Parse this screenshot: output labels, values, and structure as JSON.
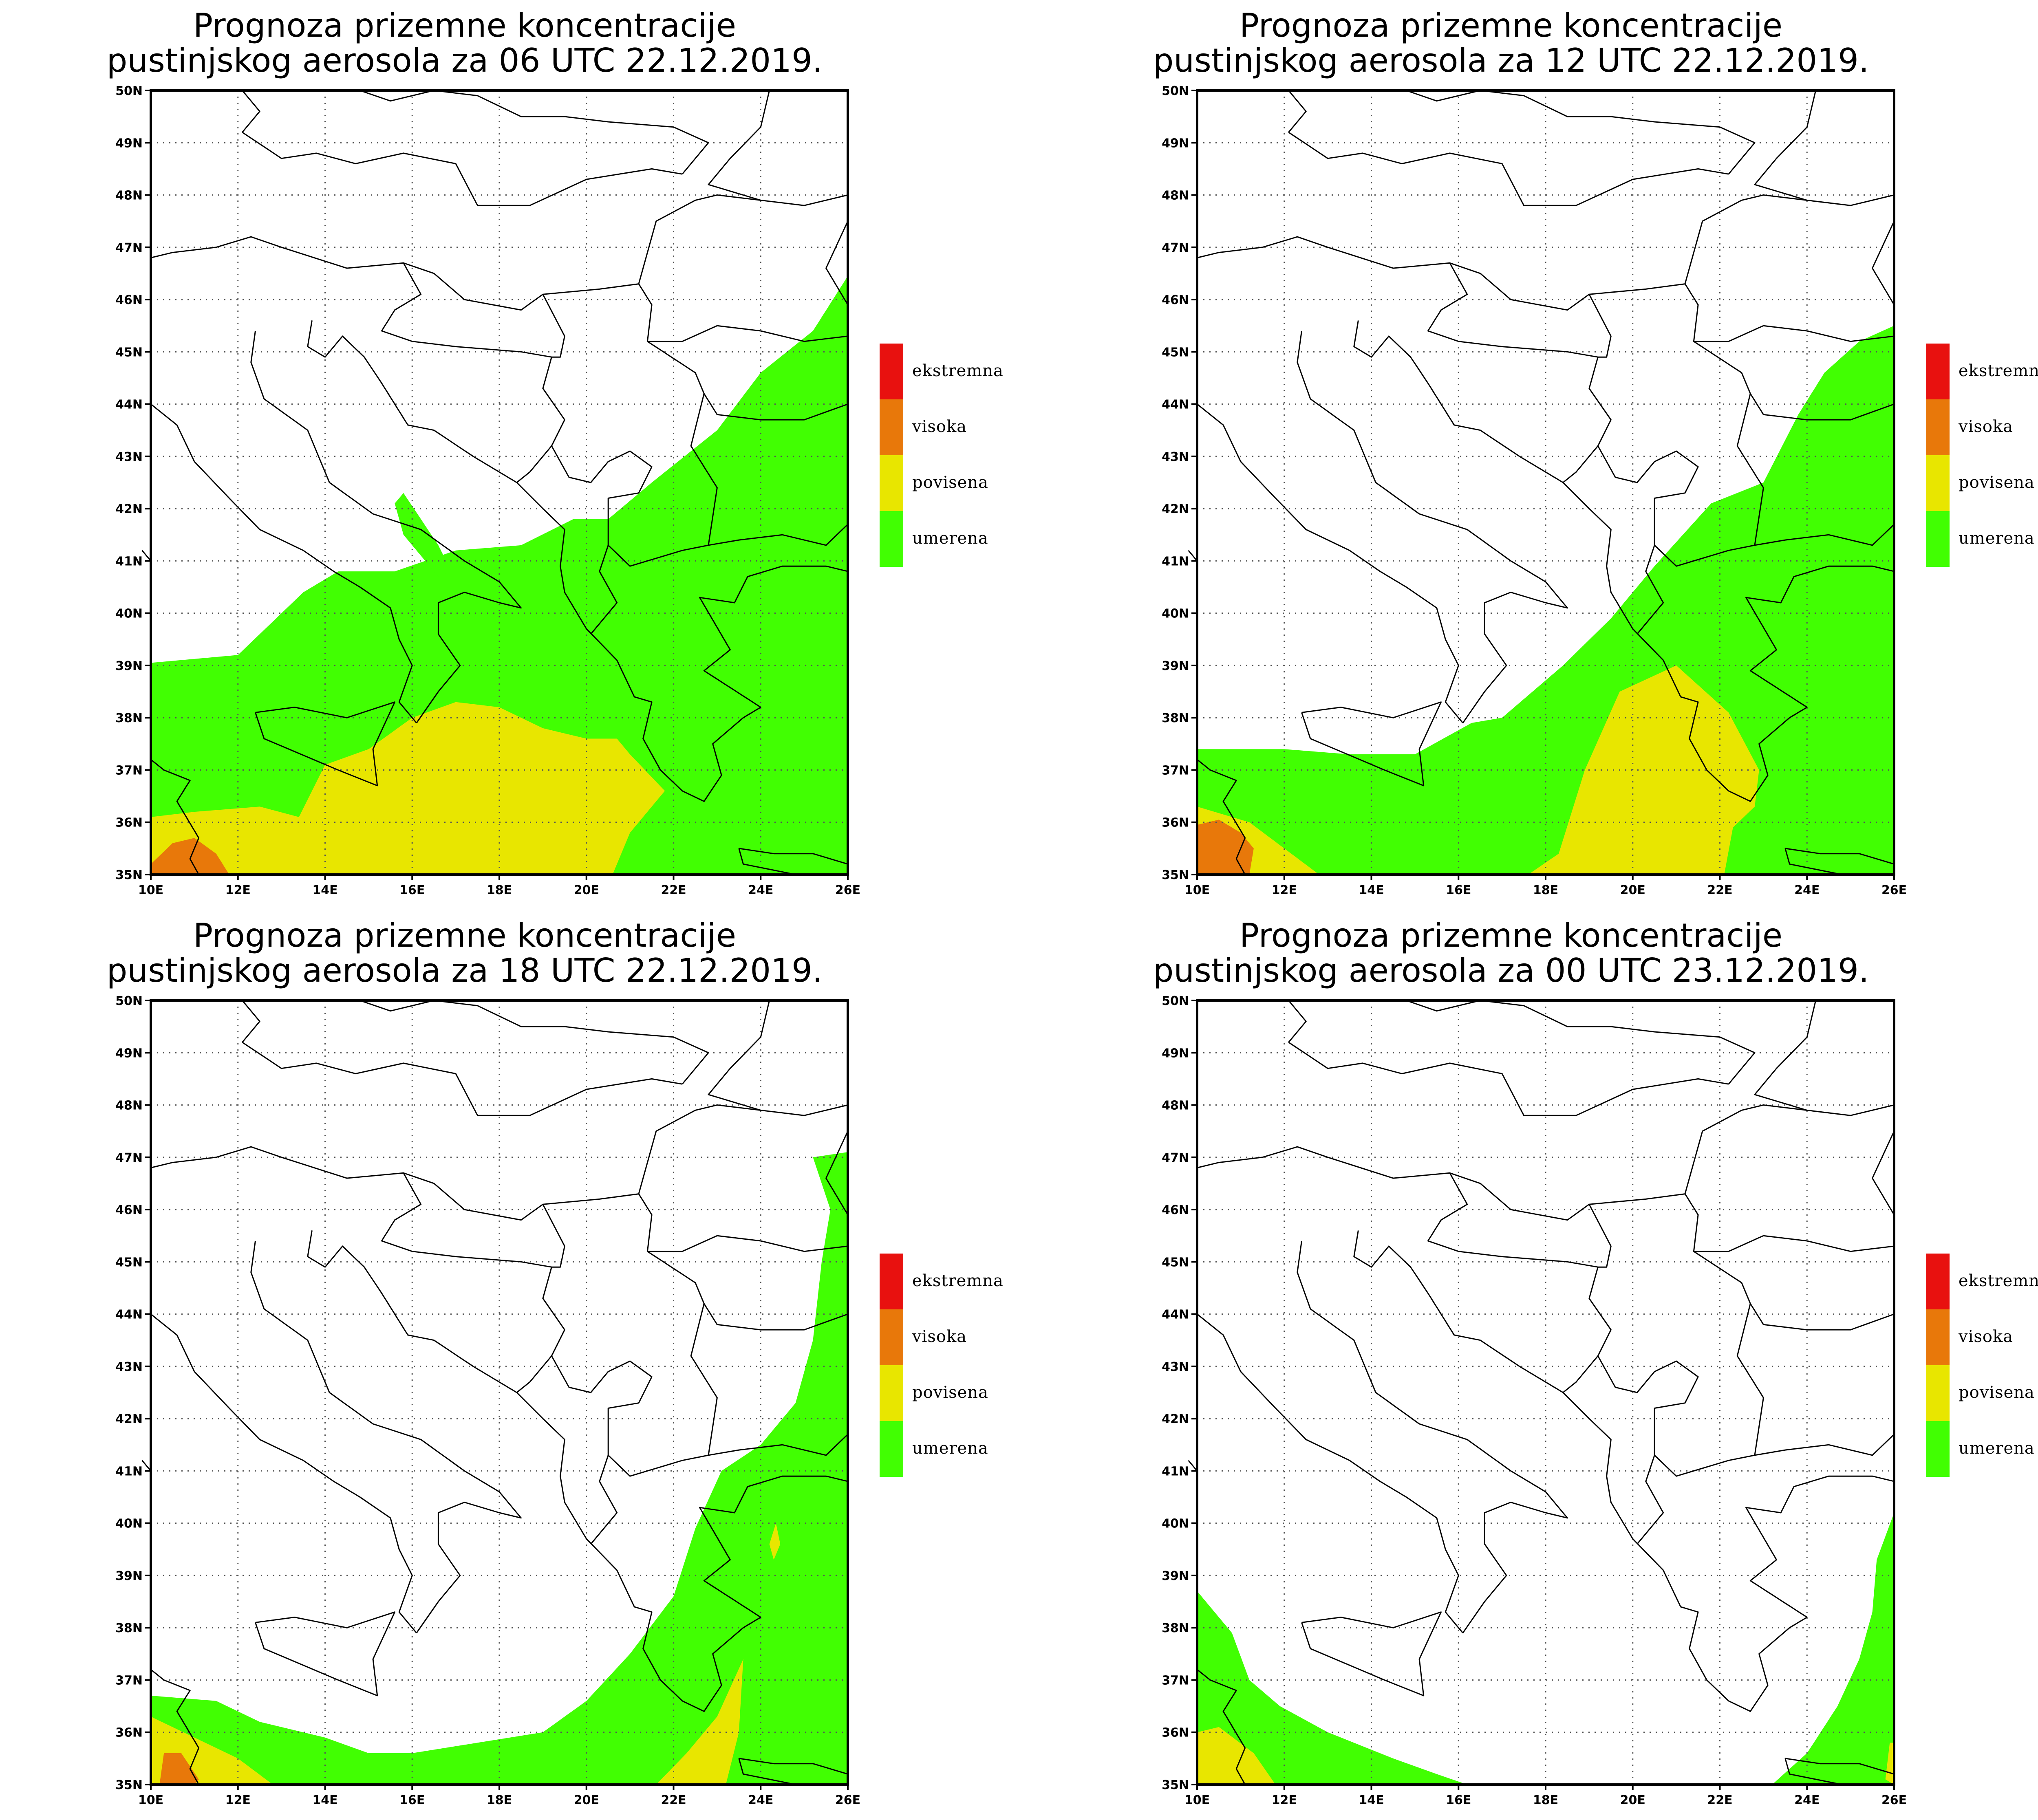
{
  "panels": [
    {
      "title_l1": "Prognoza prizemne koncentracije",
      "title_l2": "pustinjskog aerosola za 06 UTC 22.12.2019."
    },
    {
      "title_l1": "Prognoza prizemne koncentracije",
      "title_l2": "pustinjskog aerosola za 12 UTC 22.12.2019."
    },
    {
      "title_l1": "Prognoza prizemne koncentracije",
      "title_l2": "pustinjskog aerosola za 18 UTC 22.12.2019."
    },
    {
      "title_l1": "Prognoza prizemne koncentracije",
      "title_l2": "pustinjskog aerosola za 00 UTC 23.12.2019."
    }
  ],
  "axes": {
    "lon_ticks": [
      "10E",
      "12E",
      "14E",
      "16E",
      "18E",
      "20E",
      "22E",
      "24E",
      "26E"
    ],
    "lat_ticks": [
      "35N",
      "36N",
      "37N",
      "38N",
      "39N",
      "40N",
      "41N",
      "42N",
      "43N",
      "44N",
      "45N",
      "46N",
      "47N",
      "48N",
      "49N",
      "50N"
    ],
    "lon_range": [
      10,
      26
    ],
    "lat_range": [
      35,
      50
    ],
    "gridlines": "dotted"
  },
  "legend": [
    {
      "label": "ekstremna",
      "color": "#e8110f"
    },
    {
      "label": "visoka",
      "color": "#e8780a"
    },
    {
      "label": "povisena",
      "color": "#e8e600"
    },
    {
      "label": "umerena",
      "color": "#41ff02"
    }
  ],
  "colors": {
    "land_line": "#000000",
    "background": "#ffffff"
  }
}
